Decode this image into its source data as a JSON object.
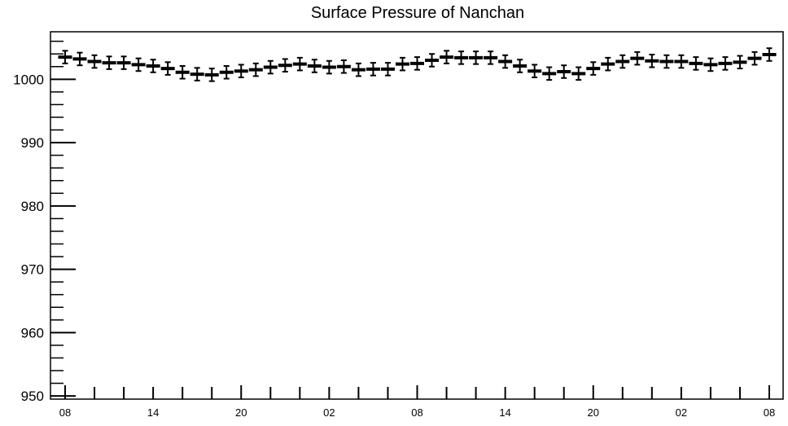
{
  "chart_data": {
    "type": "scatter",
    "title": "Surface Pressure of Nanchan",
    "xlabel": "",
    "ylabel": "",
    "ylim": [
      949.5,
      1007.5
    ],
    "grid": false,
    "legend": "none",
    "x_tick_labels": [
      "08",
      "14",
      "20",
      "02",
      "08",
      "14",
      "20",
      "02",
      "08"
    ],
    "y_tick_labels": [
      "950",
      "960",
      "970",
      "980",
      "990",
      "1000"
    ],
    "y_ticks": [
      950,
      960,
      970,
      980,
      990,
      1000
    ],
    "x": [
      "08",
      "09",
      "10",
      "11",
      "12",
      "13",
      "14",
      "15",
      "16",
      "17",
      "18",
      "19",
      "20",
      "21",
      "22",
      "23",
      "00",
      "01",
      "02",
      "03",
      "04",
      "05",
      "06",
      "07",
      "08",
      "09",
      "10",
      "11",
      "12",
      "13",
      "14",
      "15",
      "16",
      "17",
      "18",
      "19",
      "20",
      "21",
      "22",
      "23",
      "00",
      "01",
      "02",
      "03",
      "04",
      "05",
      "06",
      "07",
      "08"
    ],
    "series": [
      {
        "values": [
          1003.5,
          1003.2,
          1002.8,
          1002.6,
          1002.6,
          1002.3,
          1002.1,
          1001.7,
          1001.1,
          1000.8,
          1000.7,
          1001.1,
          1001.3,
          1001.5,
          1001.9,
          1002.2,
          1002.4,
          1002.1,
          1001.9,
          1002.0,
          1001.5,
          1001.6,
          1001.6,
          1002.4,
          1002.5,
          1003.0,
          1003.5,
          1003.4,
          1003.4,
          1003.4,
          1002.8,
          1002.1,
          1001.3,
          1000.9,
          1001.2,
          1000.9,
          1001.7,
          1002.4,
          1002.8,
          1003.3,
          1002.9,
          1002.8,
          1002.8,
          1002.5,
          1002.3,
          1002.5,
          1002.7,
          1003.3,
          1003.9
        ],
        "error": 1.0
      }
    ],
    "colors": {
      "marker": "#000000",
      "axis": "#000000",
      "background": "#ffffff"
    }
  }
}
